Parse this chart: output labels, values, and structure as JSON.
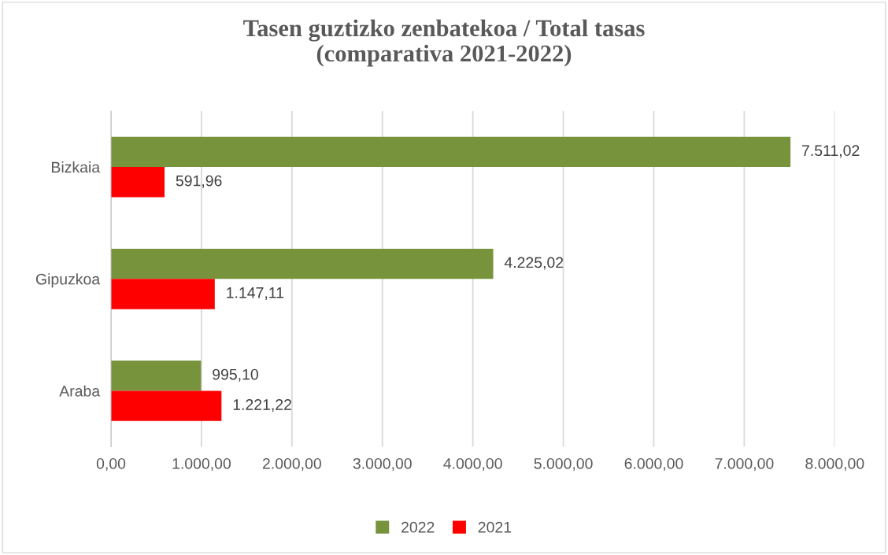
{
  "chart_data": {
    "type": "bar",
    "orientation": "horizontal",
    "title": "Tasen guztizko zenbatekoa / Total tasas\n(comparativa 2021-2022)",
    "categories": [
      "Bizkaia",
      "Gipuzkoa",
      "Araba"
    ],
    "series": [
      {
        "name": "2022",
        "color": "#77933c",
        "values": [
          7511.02,
          4225.02,
          995.1
        ],
        "value_labels": [
          "7.511,02",
          "4.225,02",
          "995,10"
        ]
      },
      {
        "name": "2021",
        "color": "#ff0000",
        "values": [
          591.96,
          1147.11,
          1221.22
        ],
        "value_labels": [
          "591,96",
          "1.147,11",
          "1.221,22"
        ]
      }
    ],
    "xlim": [
      0,
      8000
    ],
    "xticks": [
      {
        "value": 0,
        "label": "0,00"
      },
      {
        "value": 1000,
        "label": "1.000,00"
      },
      {
        "value": 2000,
        "label": "2.000,00"
      },
      {
        "value": 3000,
        "label": "3.000,00"
      },
      {
        "value": 4000,
        "label": "4.000,00"
      },
      {
        "value": 5000,
        "label": "5.000,00"
      },
      {
        "value": 6000,
        "label": "6.000,00"
      },
      {
        "value": 7000,
        "label": "7.000,00"
      },
      {
        "value": 8000,
        "label": "8.000,00"
      }
    ],
    "grid": "x",
    "legend": "bottom"
  }
}
